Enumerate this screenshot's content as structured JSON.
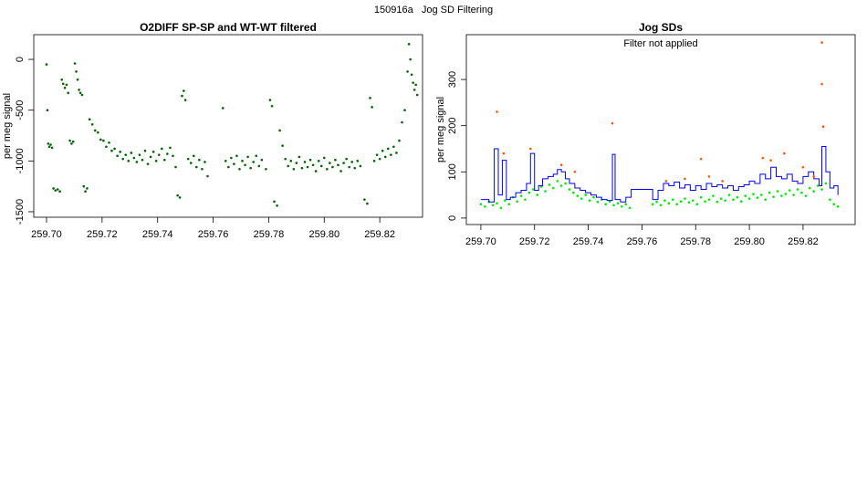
{
  "title": "150916a   Jog SD Filtering",
  "chart_data": [
    {
      "type": "scatter",
      "title": "O2DIFF SP-SP and WT-WT filtered",
      "y_label": "per meg signal",
      "xlim": [
        259.6954,
        259.8354
      ],
      "ylim": [
        -1554,
        243
      ],
      "xticks": [
        {
          "value": 259.7,
          "label": "259.70"
        },
        259.72,
        259.74,
        259.76,
        259.78,
        {
          "value": 259.8,
          "label": "259.80"
        },
        259.82
      ],
      "yticks": [
        -1500,
        -1000,
        -500,
        0
      ],
      "series": [
        {
          "mode": "points",
          "color": "#006400",
          "x": [
            259.7,
            259.7003,
            259.7006,
            259.701,
            259.7015,
            259.702,
            259.7025,
            259.7032,
            259.704,
            259.7048,
            259.7055,
            259.706,
            259.7066,
            259.7072,
            259.7078,
            259.7084,
            259.709,
            259.7096,
            259.7102,
            259.7107,
            259.7112,
            259.7117,
            259.7122,
            259.7128,
            259.7134,
            259.714,
            259.7146,
            259.7155,
            259.7165,
            259.7175,
            259.7185,
            259.7195,
            259.7205,
            259.7215,
            259.7225,
            259.7235,
            259.7245,
            259.7255,
            259.7265,
            259.7275,
            259.7285,
            259.7295,
            259.7305,
            259.7315,
            259.7325,
            259.7335,
            259.7345,
            259.7355,
            259.7365,
            259.7375,
            259.7385,
            259.7395,
            259.7405,
            259.7415,
            259.7425,
            259.7435,
            259.7445,
            259.7455,
            259.7465,
            259.7472,
            259.748,
            259.7488,
            259.7494,
            259.75,
            259.751,
            259.752,
            259.753,
            259.754,
            259.755,
            259.756,
            259.757,
            259.758,
            259.7635,
            259.7645,
            259.7655,
            259.7665,
            259.7675,
            259.7685,
            259.7695,
            259.7705,
            259.7715,
            259.7725,
            259.7735,
            259.7745,
            259.7755,
            259.7765,
            259.7775,
            259.779,
            259.7805,
            259.7812,
            259.782,
            259.783,
            259.784,
            259.785,
            259.786,
            259.787,
            259.788,
            259.789,
            259.79,
            259.791,
            259.792,
            259.793,
            259.794,
            259.795,
            259.796,
            259.797,
            259.798,
            259.799,
            259.8,
            259.801,
            259.802,
            259.803,
            259.804,
            259.805,
            259.806,
            259.807,
            259.808,
            259.809,
            259.81,
            259.811,
            259.812,
            259.813,
            259.8145,
            259.8155,
            259.8165,
            259.8172,
            259.818,
            259.819,
            259.82,
            259.821,
            259.822,
            259.823,
            259.824,
            259.825,
            259.826,
            259.827,
            259.828,
            259.829,
            259.83,
            259.8305,
            259.831,
            259.8315,
            259.832,
            259.8325,
            259.833,
            259.8335
          ],
          "values": [
            -50,
            -500,
            -830,
            -860,
            -840,
            -870,
            -1270,
            -1290,
            -1280,
            -1300,
            -200,
            -240,
            -280,
            -250,
            -330,
            -800,
            -830,
            -810,
            -40,
            -120,
            -200,
            -300,
            -330,
            -350,
            -1250,
            -1300,
            -1270,
            -590,
            -640,
            -700,
            -720,
            -790,
            -800,
            -860,
            -820,
            -900,
            -880,
            -950,
            -910,
            -980,
            -940,
            -1000,
            -920,
            -970,
            -1010,
            -940,
            -990,
            -900,
            -1030,
            -960,
            -910,
            -1000,
            -940,
            -880,
            -990,
            -930,
            -870,
            -950,
            -1060,
            -1340,
            -1360,
            -360,
            -310,
            -400,
            -980,
            -1020,
            -950,
            -1060,
            -990,
            -1080,
            -1010,
            -1150,
            -480,
            -1000,
            -1060,
            -970,
            -1030,
            -950,
            -1080,
            -1000,
            -1040,
            -960,
            -1070,
            -1010,
            -950,
            -1050,
            -990,
            -1080,
            -400,
            -460,
            -1400,
            -1440,
            -700,
            -850,
            -980,
            -1050,
            -1000,
            -1080,
            -1020,
            -960,
            -1070,
            -1010,
            -1060,
            -990,
            -1040,
            -1100,
            -1000,
            -1050,
            -970,
            -1080,
            -1020,
            -1060,
            -990,
            -1040,
            -1100,
            -1020,
            -980,
            -1060,
            -1010,
            -1070,
            -1000,
            -1050,
            -1380,
            -1420,
            -380,
            -470,
            -1000,
            -940,
            -980,
            -900,
            -960,
            -880,
            -940,
            -860,
            -920,
            -800,
            -620,
            -500,
            -120,
            150,
            0,
            -150,
            -230,
            -300,
            -250,
            -350
          ]
        }
      ]
    },
    {
      "type": "scatter",
      "title": "Jog SDs",
      "annotation": "Filter not applied",
      "y_label": "per meg signal",
      "xlim": [
        259.6946,
        259.8394
      ],
      "ylim": [
        -14,
        397
      ],
      "xticks": [
        {
          "value": 259.7,
          "label": "259.70"
        },
        259.72,
        259.74,
        259.76,
        259.78,
        {
          "value": 259.8,
          "label": "259.80"
        },
        259.82
      ],
      "yticks": [
        0,
        100,
        200,
        300
      ],
      "series": [
        {
          "mode": "points",
          "color": "#00ee00",
          "x": [
            259.7,
            259.7015,
            259.703,
            259.7045,
            259.706,
            259.7075,
            259.709,
            259.7105,
            259.712,
            259.7135,
            259.715,
            259.7165,
            259.718,
            259.7195,
            259.721,
            259.7225,
            259.724,
            259.7255,
            259.727,
            259.7285,
            259.73,
            259.7315,
            259.733,
            259.7345,
            259.736,
            259.7375,
            259.739,
            259.7405,
            259.742,
            259.7435,
            259.745,
            259.7465,
            259.748,
            259.7495,
            259.751,
            259.7525,
            259.754,
            259.7555,
            259.764,
            259.7655,
            259.767,
            259.7685,
            259.77,
            259.7715,
            259.773,
            259.7745,
            259.776,
            259.7775,
            259.779,
            259.7805,
            259.782,
            259.7835,
            259.785,
            259.7865,
            259.788,
            259.7895,
            259.791,
            259.7925,
            259.794,
            259.7955,
            259.797,
            259.7985,
            259.8,
            259.8015,
            259.803,
            259.8045,
            259.806,
            259.8075,
            259.809,
            259.8105,
            259.812,
            259.8135,
            259.815,
            259.8165,
            259.818,
            259.8195,
            259.821,
            259.8225,
            259.824,
            259.8255,
            259.827,
            259.8285,
            259.83,
            259.8315,
            259.833
          ],
          "values": [
            30,
            25,
            35,
            28,
            32,
            22,
            38,
            30,
            45,
            36,
            48,
            40,
            55,
            62,
            50,
            68,
            58,
            72,
            65,
            80,
            70,
            75,
            62,
            55,
            48,
            42,
            50,
            38,
            45,
            35,
            40,
            30,
            36,
            28,
            32,
            25,
            30,
            22,
            30,
            35,
            28,
            38,
            32,
            40,
            30,
            36,
            42,
            34,
            38,
            30,
            45,
            36,
            40,
            48,
            35,
            42,
            38,
            50,
            40,
            45,
            36,
            48,
            42,
            52,
            44,
            50,
            40,
            55,
            46,
            58,
            48,
            52,
            60,
            50,
            62,
            55,
            48,
            65,
            58,
            70,
            62,
            75,
            40,
            30,
            25
          ]
        },
        {
          "mode": "step",
          "color": "#0000ff",
          "x": [
            259.7,
            259.703,
            259.705,
            259.7065,
            259.708,
            259.7095,
            259.711,
            259.713,
            259.715,
            259.717,
            259.7185,
            259.72,
            259.7215,
            259.723,
            259.725,
            259.727,
            259.7285,
            259.73,
            259.7315,
            259.733,
            259.735,
            259.737,
            259.739,
            259.741,
            259.743,
            259.745,
            259.747,
            259.749,
            259.75,
            259.752,
            259.754,
            259.756,
            259.764,
            259.766,
            259.768,
            259.77,
            259.772,
            259.774,
            259.776,
            259.778,
            259.78,
            259.782,
            259.784,
            259.786,
            259.788,
            259.79,
            259.792,
            259.794,
            259.796,
            259.798,
            259.8,
            259.802,
            259.804,
            259.806,
            259.808,
            259.81,
            259.812,
            259.814,
            259.816,
            259.818,
            259.82,
            259.822,
            259.824,
            259.826,
            259.827,
            259.8285,
            259.83,
            259.8315,
            259.833
          ],
          "values": [
            40,
            35,
            150,
            50,
            125,
            40,
            45,
            55,
            60,
            75,
            140,
            60,
            70,
            85,
            90,
            95,
            105,
            100,
            85,
            75,
            65,
            60,
            55,
            50,
            45,
            40,
            38,
            138,
            40,
            35,
            45,
            62,
            40,
            60,
            75,
            70,
            78,
            65,
            72,
            60,
            70,
            62,
            75,
            68,
            72,
            65,
            70,
            60,
            68,
            72,
            80,
            75,
            95,
            85,
            110,
            90,
            85,
            95,
            80,
            75,
            90,
            100,
            85,
            70,
            155,
            100,
            65,
            70,
            50
          ]
        },
        {
          "mode": "points",
          "color": "#ff5500",
          "x": [
            259.706,
            259.7085,
            259.7185,
            259.73,
            259.735,
            259.749,
            259.769,
            259.776,
            259.782,
            259.785,
            259.79,
            259.805,
            259.808,
            259.813,
            259.82,
            259.827,
            259.827,
            259.8275,
            259.824
          ],
          "values": [
            230,
            140,
            150,
            115,
            100,
            205,
            80,
            85,
            128,
            90,
            80,
            130,
            125,
            140,
            110,
            380,
            290,
            198,
            90
          ]
        }
      ]
    }
  ]
}
